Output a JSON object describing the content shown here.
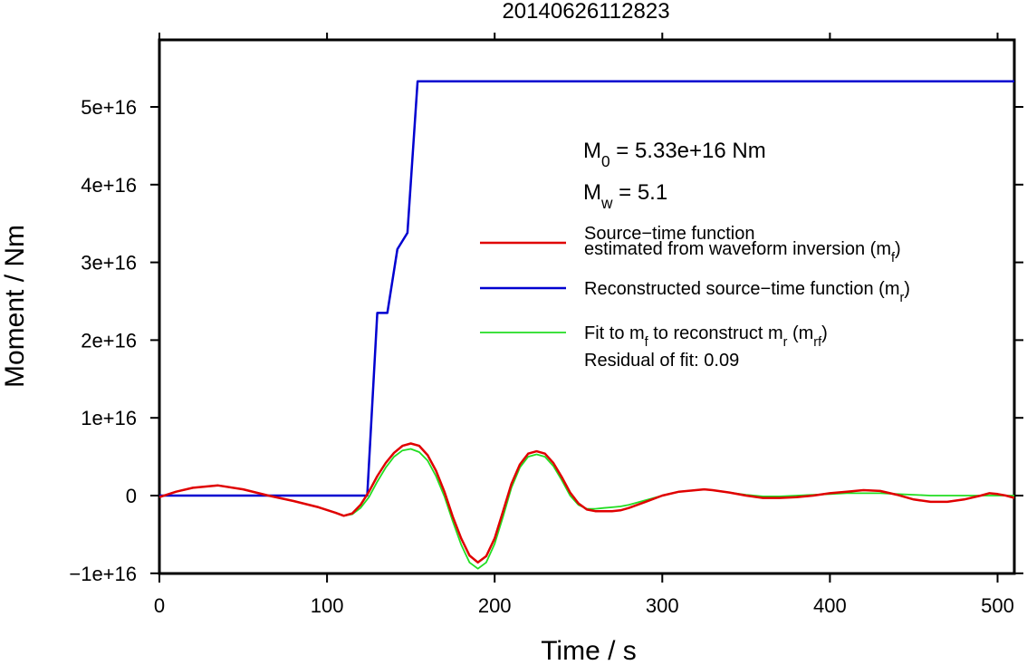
{
  "chart_data": {
    "type": "line",
    "title": "20140626112823",
    "xlabel": "Time / s",
    "ylabel": "Moment / Nm",
    "xlim": [
      0,
      510
    ],
    "ylim": [
      -1e+16,
      5.9e+16
    ],
    "x_ticks": [
      0,
      100,
      200,
      300,
      400,
      500
    ],
    "x_tick_labels": [
      "0",
      "100",
      "200",
      "300",
      "400",
      "500"
    ],
    "y_ticks": [
      -1e+16,
      0,
      1e+16,
      2e+16,
      3e+16,
      4e+16,
      5e+16
    ],
    "y_tick_labels": [
      "−1e+16",
      "0",
      "1e+16",
      "2e+16",
      "3e+16",
      "4e+16",
      "5e+16"
    ],
    "grid": false,
    "legend_position": "right",
    "annotations": {
      "m0": {
        "main": "M",
        "sub": "0",
        "rest": " = 5.33e+16 Nm"
      },
      "mw": {
        "main": "M",
        "sub": "w",
        "rest": " = 5.1"
      },
      "residual": "Residual of fit: 0.09"
    },
    "series": [
      {
        "key": "mf",
        "legend_parts": [
          [
            "Source−time function",
            ""
          ],
          [
            "estimated from waveform inversion (m",
            "f",
            ")"
          ]
        ],
        "color": "#e00000",
        "line_width": 2.5,
        "x": [
          0,
          10,
          20,
          35,
          50,
          65,
          80,
          95,
          105,
          110,
          115,
          120,
          125,
          130,
          135,
          140,
          145,
          150,
          155,
          160,
          165,
          170,
          175,
          180,
          185,
          190,
          195,
          200,
          205,
          210,
          215,
          220,
          225,
          230,
          235,
          240,
          245,
          250,
          255,
          260,
          265,
          270,
          275,
          280,
          290,
          300,
          310,
          320,
          325,
          330,
          340,
          350,
          360,
          370,
          380,
          390,
          400,
          410,
          420,
          430,
          440,
          450,
          460,
          470,
          480,
          490,
          495,
          500,
          505,
          510
        ],
        "y": [
          -200000000000000.0,
          500000000000000.0,
          1000000000000000.0,
          1300000000000000.0,
          800000000000000.0,
          0.0,
          -700000000000000.0,
          -1500000000000000.0,
          -2200000000000000.0,
          -2600000000000000.0,
          -2300000000000000.0,
          -1200000000000000.0,
          500000000000000.0,
          2500000000000000.0,
          4200000000000000.0,
          5500000000000000.0,
          6400000000000000.0,
          6700000000000000.0,
          6400000000000000.0,
          5200000000000000.0,
          3200000000000000.0,
          500000000000000.0,
          -2700000000000000.0,
          -5500000000000000.0,
          -7700000000000000.0,
          -8600000000000000.0,
          -7800000000000000.0,
          -5500000000000000.0,
          -2000000000000000.0,
          1500000000000000.0,
          4000000000000000.0,
          5400000000000000.0,
          5700000000000000.0,
          5400000000000000.0,
          4200000000000000.0,
          2400000000000000.0,
          400000000000000.0,
          -1000000000000000.0,
          -1800000000000000.0,
          -2000000000000000.0,
          -2000000000000000.0,
          -2000000000000000.0,
          -1900000000000000.0,
          -1600000000000000.0,
          -800000000000000.0,
          0.0,
          500000000000000.0,
          700000000000000.0,
          800000000000000.0,
          700000000000000.0,
          400000000000000.0,
          0.0,
          -300000000000000.0,
          -300000000000000.0,
          -200000000000000.0,
          0.0,
          300000000000000.0,
          500000000000000.0,
          700000000000000.0,
          600000000000000.0,
          100000000000000.0,
          -500000000000000.0,
          -800000000000000.0,
          -800000000000000.0,
          -500000000000000.0,
          0.0,
          300000000000000.0,
          200000000000000.0,
          0.0,
          -300000000000000.0
        ]
      },
      {
        "key": "mr",
        "legend_parts": [
          [
            "Reconstructed source−time function (m",
            "r",
            ")"
          ]
        ],
        "color": "#0000d0",
        "line_width": 2.5,
        "x": [
          0,
          124,
          130,
          136,
          142,
          148,
          154,
          510
        ],
        "y": [
          0,
          0,
          2.35e+16,
          2.35e+16,
          3.17e+16,
          3.38e+16,
          5.33e+16,
          5.33e+16
        ]
      },
      {
        "key": "mrf",
        "legend_parts": [
          [
            "Fit to m",
            "f",
            " to reconstruct m",
            "r",
            " (m",
            "rf",
            ")"
          ]
        ],
        "color": "#22dd22",
        "line_width": 1.8,
        "x": [
          0,
          10,
          20,
          35,
          50,
          65,
          80,
          95,
          105,
          110,
          115,
          120,
          125,
          130,
          135,
          140,
          145,
          150,
          155,
          160,
          165,
          170,
          175,
          180,
          185,
          190,
          195,
          200,
          205,
          210,
          215,
          220,
          225,
          230,
          235,
          240,
          245,
          250,
          255,
          260,
          265,
          270,
          275,
          280,
          290,
          300,
          310,
          320,
          325,
          330,
          340,
          350,
          360,
          370,
          380,
          390,
          400,
          410,
          420,
          430,
          440,
          450,
          460,
          470,
          480,
          490,
          495,
          500,
          505,
          510
        ],
        "y": [
          -200000000000000.0,
          500000000000000.0,
          1000000000000000.0,
          1300000000000000.0,
          800000000000000.0,
          0.0,
          -700000000000000.0,
          -1500000000000000.0,
          -2200000000000000.0,
          -2600000000000000.0,
          -2400000000000000.0,
          -1600000000000000.0,
          -200000000000000.0,
          1800000000000000.0,
          3600000000000000.0,
          5000000000000000.0,
          5800000000000000.0,
          6000000000000000.0,
          5600000000000000.0,
          4500000000000000.0,
          2500000000000000.0,
          -100000000000000.0,
          -3300000000000000.0,
          -6300000000000000.0,
          -8600000000000000.0,
          -9400000000000000.0,
          -8600000000000000.0,
          -6200000000000000.0,
          -2700000000000000.0,
          1000000000000000.0,
          3600000000000000.0,
          5000000000000000.0,
          5300000000000000.0,
          5000000000000000.0,
          3800000000000000.0,
          2000000000000000.0,
          0.0,
          -1200000000000000.0,
          -1700000000000000.0,
          -1700000000000000.0,
          -1600000000000000.0,
          -1500000000000000.0,
          -1400000000000000.0,
          -1200000000000000.0,
          -600000000000000.0,
          0.0,
          500000000000000.0,
          700000000000000.0,
          800000000000000.0,
          700000000000000.0,
          400000000000000.0,
          100000000000000.0,
          -100000000000000.0,
          -100000000000000.0,
          0.0,
          100000000000000.0,
          200000000000000.0,
          300000000000000.0,
          300000000000000.0,
          300000000000000.0,
          200000000000000.0,
          100000000000000.0,
          0.0,
          0.0,
          0.0,
          0.0,
          0.0,
          0.0,
          0.0,
          0.0
        ]
      }
    ]
  }
}
